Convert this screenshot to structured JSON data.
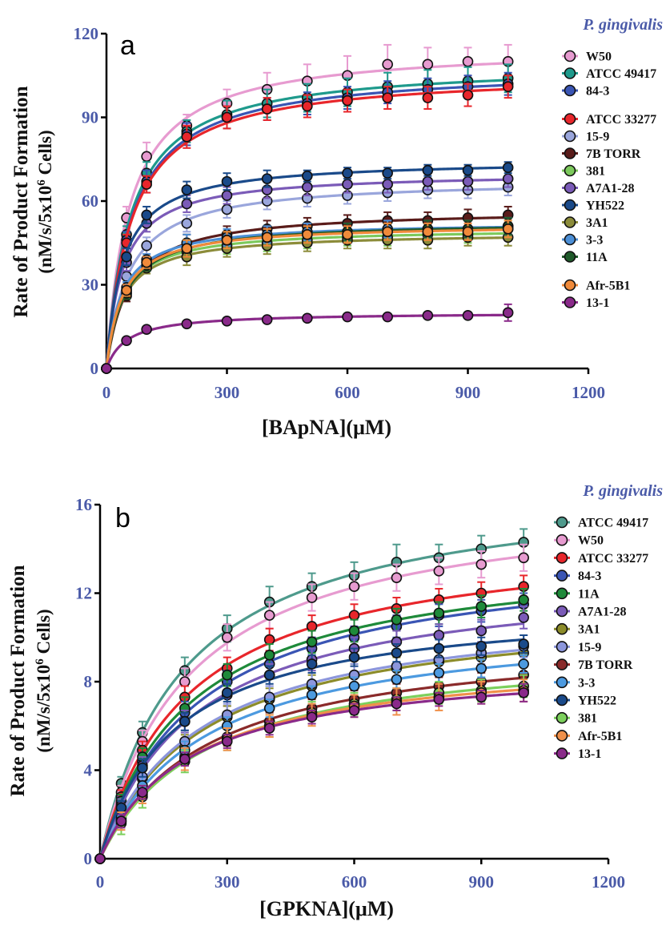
{
  "chart_data": [
    {
      "type": "scatter",
      "panel_label": "a",
      "legend_title": "P. gingivalis",
      "xlabel": "[BApNA](μM)",
      "ylabel_line1": "Rate of Product Formation",
      "ylabel_line2": "(nM/s/5x10",
      "ylabel_sup": "6",
      "ylabel_tail": " Cells)",
      "xlim": [
        0,
        1200
      ],
      "ylim": [
        0,
        120
      ],
      "xticks": [
        "0",
        "300",
        "600",
        "900",
        "1200"
      ],
      "yticks": [
        "0",
        "30",
        "60",
        "90",
        "120"
      ],
      "x": [
        0,
        50,
        100,
        200,
        300,
        400,
        500,
        600,
        700,
        800,
        900,
        1000
      ],
      "legend_gap_after": [
        3,
        12
      ],
      "series": [
        {
          "name": "W50",
          "color": "#e79bd0",
          "values": [
            0,
            54,
            76,
            87,
            95,
            100,
            103,
            105,
            109,
            109,
            110,
            110
          ],
          "err": [
            0,
            4,
            5,
            4,
            5,
            6,
            6,
            7,
            7,
            6,
            5,
            6
          ]
        },
        {
          "name": "ATCC 49417",
          "color": "#1e9a8c",
          "values": [
            0,
            48,
            70,
            85,
            91,
            95,
            97,
            99,
            101,
            102,
            103,
            104
          ],
          "err": [
            0,
            3,
            4,
            4,
            5,
            5,
            5,
            5,
            5,
            5,
            5,
            5
          ]
        },
        {
          "name": "84-3",
          "color": "#3a55b4",
          "values": [
            0,
            46,
            67,
            84,
            90,
            93,
            95,
            97,
            99,
            100,
            101,
            102
          ],
          "err": [
            0,
            3,
            4,
            4,
            4,
            4,
            4,
            4,
            4,
            4,
            4,
            4
          ]
        },
        {
          "name": "ATCC 33277",
          "color": "#e8262b",
          "values": [
            0,
            45,
            66,
            83,
            90,
            93,
            94,
            96,
            97,
            97,
            98,
            101
          ],
          "err": [
            0,
            3,
            3,
            4,
            4,
            4,
            4,
            4,
            4,
            4,
            4,
            4
          ]
        },
        {
          "name": "15-9",
          "color": "#9aa6dc",
          "values": [
            0,
            33,
            44,
            52,
            57,
            60,
            61,
            62,
            63,
            64,
            64,
            65
          ],
          "err": [
            0,
            2,
            3,
            3,
            3,
            3,
            3,
            3,
            3,
            3,
            3,
            3
          ]
        },
        {
          "name": "7B TORR",
          "color": "#5a1c1a",
          "values": [
            0,
            26,
            38,
            45,
            48,
            50,
            51,
            52,
            53,
            53,
            54,
            55
          ],
          "err": [
            0,
            2,
            2,
            3,
            3,
            3,
            3,
            3,
            3,
            3,
            3,
            3
          ]
        },
        {
          "name": "381",
          "color": "#7cc95c",
          "values": [
            0,
            28,
            37,
            42,
            44,
            45,
            46,
            47,
            47,
            48,
            48,
            50
          ],
          "err": [
            0,
            2,
            2,
            3,
            3,
            3,
            3,
            3,
            3,
            3,
            3,
            3
          ]
        },
        {
          "name": "A7A1-28",
          "color": "#7b5bb8",
          "values": [
            0,
            38,
            52,
            59,
            62,
            64,
            65,
            66,
            66,
            67,
            67,
            68
          ],
          "err": [
            0,
            3,
            3,
            3,
            3,
            3,
            3,
            3,
            3,
            3,
            3,
            3
          ]
        },
        {
          "name": "YH522",
          "color": "#1a4a8a",
          "values": [
            0,
            40,
            55,
            64,
            67,
            68,
            69,
            70,
            70,
            71,
            71,
            72
          ],
          "err": [
            0,
            3,
            3,
            3,
            3,
            3,
            2,
            2,
            2,
            2,
            2,
            2
          ]
        },
        {
          "name": "3A1",
          "color": "#8c8c3a",
          "values": [
            0,
            27,
            36,
            40,
            43,
            44,
            45,
            46,
            46,
            46,
            47,
            47
          ],
          "err": [
            0,
            2,
            2,
            3,
            3,
            3,
            3,
            3,
            3,
            3,
            3,
            3
          ]
        },
        {
          "name": "3-3",
          "color": "#4c8fd6",
          "values": [
            0,
            29,
            39,
            45,
            47,
            48,
            49,
            49,
            50,
            50,
            50,
            51
          ],
          "err": [
            0,
            2,
            2,
            3,
            3,
            3,
            3,
            3,
            3,
            3,
            3,
            3
          ]
        },
        {
          "name": "11A",
          "color": "#1f5a2a",
          "values": [
            0,
            27,
            37,
            43,
            46,
            47,
            48,
            49,
            49,
            50,
            50,
            51
          ],
          "err": [
            0,
            2,
            2,
            3,
            3,
            3,
            3,
            3,
            3,
            3,
            3,
            3
          ]
        },
        {
          "name": "Afr-5B1",
          "color": "#f08a3a",
          "values": [
            0,
            28,
            38,
            43,
            46,
            47,
            48,
            48,
            49,
            49,
            49,
            50
          ],
          "err": [
            0,
            2,
            2,
            3,
            3,
            3,
            3,
            3,
            3,
            3,
            3,
            3
          ]
        },
        {
          "name": "13-1",
          "color": "#8a2a8a",
          "values": [
            0,
            10,
            14,
            16,
            17,
            17.5,
            18,
            18.5,
            18.5,
            19,
            19,
            20
          ],
          "err": [
            0,
            1,
            1,
            1,
            1,
            1,
            1,
            1,
            1,
            1,
            1,
            3
          ]
        }
      ]
    },
    {
      "type": "scatter",
      "panel_label": "b",
      "legend_title": "P. gingivalis",
      "xlabel": "[GPKNA](μM)",
      "ylabel_line1": "Rate of Product Formation",
      "ylabel_line2": "(nM/s/5x10",
      "ylabel_sup": "6",
      "ylabel_tail": " Cells)",
      "xlim": [
        0,
        1200
      ],
      "ylim": [
        0,
        16
      ],
      "xticks": [
        "0",
        "300",
        "600",
        "900",
        "1200"
      ],
      "yticks": [
        "0",
        "4",
        "8",
        "12",
        "16"
      ],
      "x": [
        0,
        50,
        100,
        200,
        300,
        400,
        500,
        600,
        700,
        800,
        900,
        1000
      ],
      "legend_gap_after": [],
      "series": [
        {
          "name": "ATCC 49417",
          "color": "#4e9a8c",
          "values": [
            0,
            3.4,
            5.7,
            8.5,
            10.4,
            11.6,
            12.3,
            12.8,
            13.4,
            13.6,
            14.0,
            14.3
          ],
          "err": [
            0,
            0.3,
            0.5,
            0.6,
            0.6,
            0.7,
            0.6,
            0.6,
            0.8,
            0.6,
            0.6,
            0.6
          ]
        },
        {
          "name": "W50",
          "color": "#e79bd0",
          "values": [
            0,
            3.0,
            5.3,
            8.0,
            10.0,
            11.0,
            11.8,
            12.3,
            12.7,
            13.0,
            13.3,
            13.6
          ],
          "err": [
            0,
            0.3,
            0.5,
            0.6,
            0.6,
            0.6,
            0.6,
            0.6,
            0.6,
            0.6,
            0.6,
            0.6
          ]
        },
        {
          "name": "ATCC 33277",
          "color": "#e8262b",
          "values": [
            0,
            2.8,
            4.9,
            7.3,
            8.6,
            9.9,
            10.5,
            11.0,
            11.3,
            11.7,
            12.0,
            12.3
          ],
          "err": [
            0,
            0.3,
            0.4,
            0.5,
            0.5,
            0.5,
            0.5,
            0.5,
            0.5,
            0.5,
            0.5,
            0.5
          ]
        },
        {
          "name": "84-3",
          "color": "#3a55b4",
          "values": [
            0,
            2.5,
            4.4,
            6.6,
            8.0,
            8.8,
            9.5,
            10.0,
            10.5,
            11.0,
            11.2,
            11.5
          ],
          "err": [
            0,
            0.3,
            0.4,
            0.5,
            0.5,
            0.5,
            0.5,
            0.5,
            0.5,
            0.5,
            0.5,
            0.5
          ]
        },
        {
          "name": "11A",
          "color": "#1e8a3a",
          "values": [
            0,
            2.6,
            4.6,
            6.8,
            8.3,
            9.2,
            9.8,
            10.3,
            10.8,
            11.1,
            11.4,
            11.7
          ],
          "err": [
            0,
            0.3,
            0.4,
            0.5,
            0.5,
            0.5,
            0.5,
            0.5,
            0.5,
            0.5,
            0.5,
            0.5
          ]
        },
        {
          "name": "A7A1-28",
          "color": "#7b5bb8",
          "values": [
            0,
            2.4,
            4.2,
            6.2,
            7.4,
            8.3,
            9.0,
            9.5,
            9.8,
            10.1,
            10.3,
            10.9
          ],
          "err": [
            0,
            0.3,
            0.4,
            0.5,
            0.5,
            0.5,
            0.5,
            0.5,
            0.5,
            0.5,
            0.5,
            0.5
          ]
        },
        {
          "name": "3A1",
          "color": "#8c8c2a",
          "values": [
            0,
            2.0,
            3.6,
            5.1,
            6.4,
            7.2,
            7.8,
            8.3,
            8.6,
            8.9,
            9.1,
            9.3
          ],
          "err": [
            0,
            0.3,
            0.4,
            0.5,
            0.5,
            0.5,
            0.5,
            0.5,
            0.5,
            0.5,
            0.5,
            0.5
          ]
        },
        {
          "name": "15-9",
          "color": "#8c96dc",
          "values": [
            0,
            2.1,
            3.7,
            5.3,
            6.5,
            7.3,
            7.9,
            8.3,
            8.7,
            9.0,
            9.3,
            9.6
          ],
          "err": [
            0,
            0.3,
            0.4,
            0.5,
            0.5,
            0.5,
            0.5,
            0.5,
            0.5,
            0.5,
            0.5,
            0.5
          ]
        },
        {
          "name": "7B TORR",
          "color": "#8a2a2a",
          "values": [
            0,
            1.8,
            3.0,
            4.6,
            5.5,
            6.2,
            6.8,
            7.2,
            7.5,
            7.8,
            8.0,
            8.3
          ],
          "err": [
            0,
            0.3,
            0.3,
            0.4,
            0.4,
            0.4,
            0.4,
            0.4,
            0.4,
            0.4,
            0.4,
            0.4
          ]
        },
        {
          "name": "3-3",
          "color": "#4c9ae0",
          "values": [
            0,
            1.9,
            3.3,
            4.9,
            6.0,
            6.8,
            7.4,
            7.8,
            8.1,
            8.4,
            8.6,
            8.8
          ],
          "err": [
            0,
            0.3,
            0.4,
            0.4,
            0.4,
            0.4,
            0.4,
            0.4,
            0.4,
            0.4,
            0.4,
            0.4
          ]
        },
        {
          "name": "YH522",
          "color": "#1a4a8a",
          "values": [
            0,
            2.3,
            4.1,
            6.2,
            7.5,
            8.3,
            8.8,
            9.1,
            9.3,
            9.5,
            9.6,
            9.7
          ],
          "err": [
            0,
            0.3,
            0.4,
            0.4,
            0.4,
            0.4,
            0.4,
            0.4,
            0.4,
            0.4,
            0.4,
            0.4
          ]
        },
        {
          "name": "381",
          "color": "#7cd05c",
          "values": [
            0,
            1.6,
            2.8,
            4.4,
            5.4,
            6.0,
            6.6,
            7.0,
            7.2,
            7.5,
            7.6,
            7.8
          ],
          "err": [
            0,
            0.5,
            0.5,
            0.5,
            0.5,
            0.5,
            0.5,
            0.5,
            0.5,
            0.5,
            0.5,
            0.5
          ]
        },
        {
          "name": "Afr-5B1",
          "color": "#f0904a",
          "values": [
            0,
            1.7,
            2.9,
            4.5,
            5.4,
            6.0,
            6.5,
            6.9,
            7.1,
            7.3,
            7.5,
            7.6
          ],
          "err": [
            0,
            0.4,
            0.4,
            0.5,
            0.5,
            0.5,
            0.5,
            0.5,
            0.6,
            0.6,
            0.5,
            0.5
          ]
        },
        {
          "name": "13-1",
          "color": "#8a2a8a",
          "values": [
            0,
            1.7,
            3.0,
            4.5,
            5.3,
            5.9,
            6.4,
            6.7,
            7.0,
            7.2,
            7.3,
            7.5
          ],
          "err": [
            0,
            0.3,
            0.3,
            0.3,
            0.3,
            0.3,
            0.3,
            0.3,
            0.3,
            0.3,
            0.3,
            0.4
          ]
        }
      ]
    }
  ]
}
